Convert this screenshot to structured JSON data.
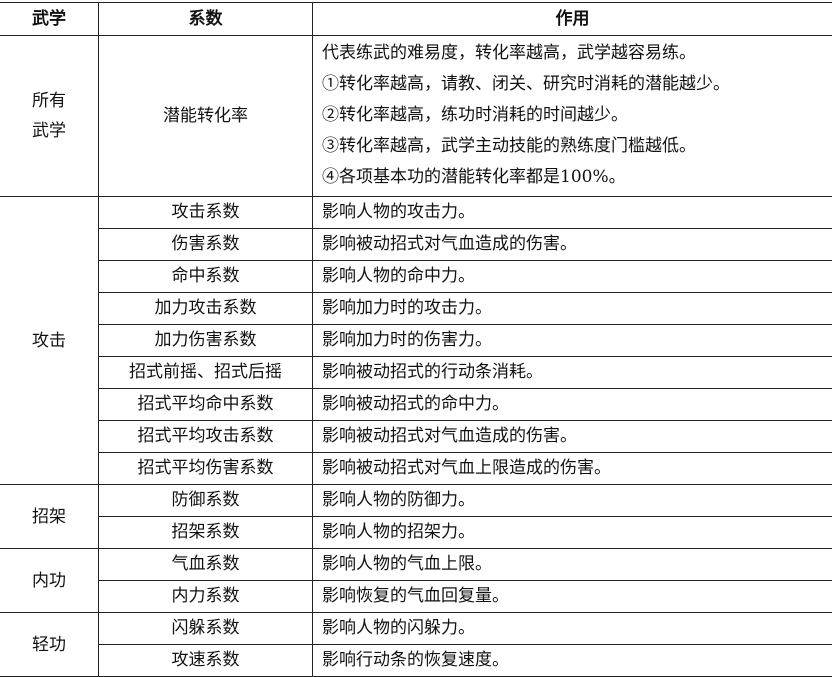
{
  "headers": [
    "武学",
    "系数",
    "作用"
  ],
  "all": {
    "category": [
      "所有",
      "武学"
    ],
    "coef": "潜能转化率",
    "effects": [
      "代表练武的难易度，转化率越高，武学越容易练。",
      "①转化率越高，请教、闭关、研究时消耗的潜能越少。",
      "②转化率越高，练功时消耗的时间越少。",
      "③转化率越高，武学主动技能的熟练度门槛越低。",
      "④各项基本功的潜能转化率都是100%。"
    ]
  },
  "groups": [
    {
      "category": "攻击",
      "rows": [
        {
          "coef": "攻击系数",
          "effect": "影响人物的攻击力。"
        },
        {
          "coef": "伤害系数",
          "effect": "影响被动招式对气血造成的伤害。"
        },
        {
          "coef": "命中系数",
          "effect": "影响人物的命中力。"
        },
        {
          "coef": "加力攻击系数",
          "effect": "影响加力时的攻击力。"
        },
        {
          "coef": "加力伤害系数",
          "effect": "影响加力时的伤害力。"
        },
        {
          "coef": "招式前摇、招式后摇",
          "effect": "影响被动招式的行动条消耗。"
        },
        {
          "coef": "招式平均命中系数",
          "effect": "影响被动招式的命中力。"
        },
        {
          "coef": "招式平均攻击系数",
          "effect": "影响被动招式对气血造成的伤害。"
        },
        {
          "coef": "招式平均伤害系数",
          "effect": "影响被动招式对气血上限造成的伤害。"
        }
      ]
    },
    {
      "category": "招架",
      "rows": [
        {
          "coef": "防御系数",
          "effect": "影响人物的防御力。"
        },
        {
          "coef": "招架系数",
          "effect": "影响人物的招架力。"
        }
      ]
    },
    {
      "category": "内功",
      "rows": [
        {
          "coef": "气血系数",
          "effect": "影响人物的气血上限。"
        },
        {
          "coef": "内力系数",
          "effect": "影响恢复的气血回复量。"
        }
      ]
    },
    {
      "category": "轻功",
      "rows": [
        {
          "coef": "闪躲系数",
          "effect": "影响人物的闪躲力。"
        },
        {
          "coef": "攻速系数",
          "effect": "影响行动条的恢复速度。"
        }
      ]
    }
  ]
}
